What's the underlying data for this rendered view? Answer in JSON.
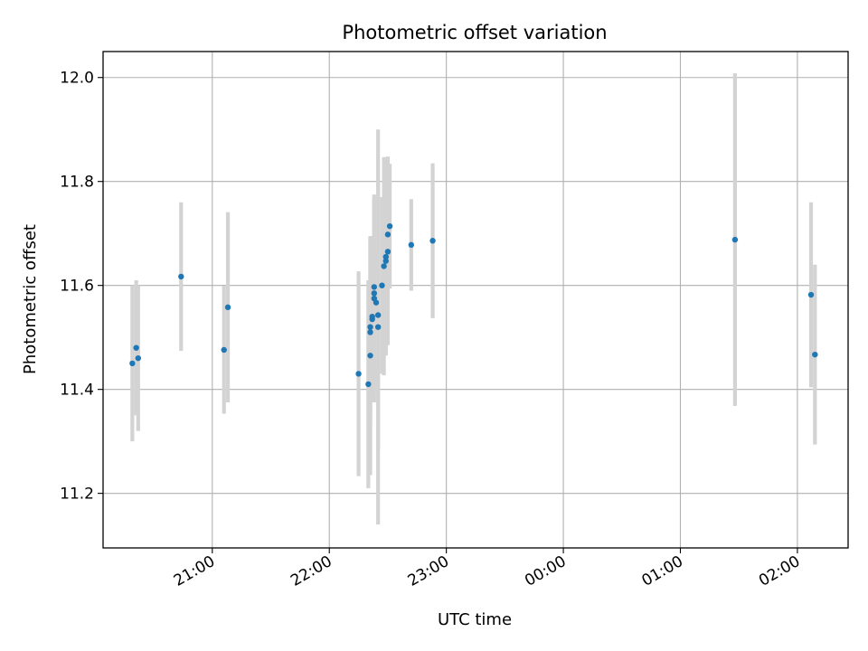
{
  "chart_data": {
    "type": "scatter",
    "title": "Photometric offset variation",
    "xlabel": "UTC time",
    "ylabel": "Photometric offset",
    "x_axis": "time (UTC, minutes after 20:00 of first night)",
    "xlim": [
      "20:04",
      "02:26"
    ],
    "ylim": [
      11.095,
      12.05
    ],
    "x_ticks": [
      "21:00",
      "22:00",
      "23:00",
      "00:00",
      "01:00",
      "02:00"
    ],
    "y_ticks": [
      "11.2",
      "11.4",
      "11.6",
      "11.8",
      "12.0"
    ],
    "grid": true,
    "legend": "none",
    "colors": {
      "point": "#1f77b4",
      "errorbar": "#d3d3d3",
      "grid": "#b0b0b0"
    },
    "points": [
      {
        "x": "20:19",
        "y": 11.45,
        "err": 0.15
      },
      {
        "x": "20:21",
        "y": 11.48,
        "err": 0.13
      },
      {
        "x": "20:22",
        "y": 11.46,
        "err": 0.14
      },
      {
        "x": "20:44",
        "y": 11.617,
        "err": 0.143
      },
      {
        "x": "21:06",
        "y": 11.476,
        "err": 0.123
      },
      {
        "x": "21:08",
        "y": 11.558,
        "err": 0.183
      },
      {
        "x": "22:15",
        "y": 11.43,
        "err": 0.197
      },
      {
        "x": "22:20",
        "y": 11.41,
        "err": 0.2
      },
      {
        "x": "22:21",
        "y": 11.465,
        "err": 0.23
      },
      {
        "x": "22:21",
        "y": 11.51,
        "err": 0.18
      },
      {
        "x": "22:21",
        "y": 11.52,
        "err": 0.17
      },
      {
        "x": "22:22",
        "y": 11.535,
        "err": 0.16
      },
      {
        "x": "22:22",
        "y": 11.54,
        "err": 0.15
      },
      {
        "x": "22:23",
        "y": 11.575,
        "err": 0.2
      },
      {
        "x": "22:23",
        "y": 11.585,
        "err": 0.18
      },
      {
        "x": "22:23",
        "y": 11.597,
        "err": 0.17
      },
      {
        "x": "22:24",
        "y": 11.567,
        "err": 0.15
      },
      {
        "x": "22:25",
        "y": 11.52,
        "err": 0.38
      },
      {
        "x": "22:25",
        "y": 11.543,
        "err": 0.26
      },
      {
        "x": "22:27",
        "y": 11.6,
        "err": 0.17
      },
      {
        "x": "22:28",
        "y": 11.637,
        "err": 0.21
      },
      {
        "x": "22:29",
        "y": 11.655,
        "err": 0.19
      },
      {
        "x": "22:29",
        "y": 11.647,
        "err": 0.18
      },
      {
        "x": "22:30",
        "y": 11.665,
        "err": 0.18
      },
      {
        "x": "22:30",
        "y": 11.698,
        "err": 0.15
      },
      {
        "x": "22:31",
        "y": 11.714,
        "err": 0.12
      },
      {
        "x": "22:42",
        "y": 11.678,
        "err": 0.088
      },
      {
        "x": "22:53",
        "y": 11.686,
        "err": 0.149
      },
      {
        "x": "01:28",
        "y": 11.688,
        "err": 0.32
      },
      {
        "x": "02:07",
        "y": 11.582,
        "err": 0.178
      },
      {
        "x": "02:09",
        "y": 11.467,
        "err": 0.173
      }
    ]
  }
}
